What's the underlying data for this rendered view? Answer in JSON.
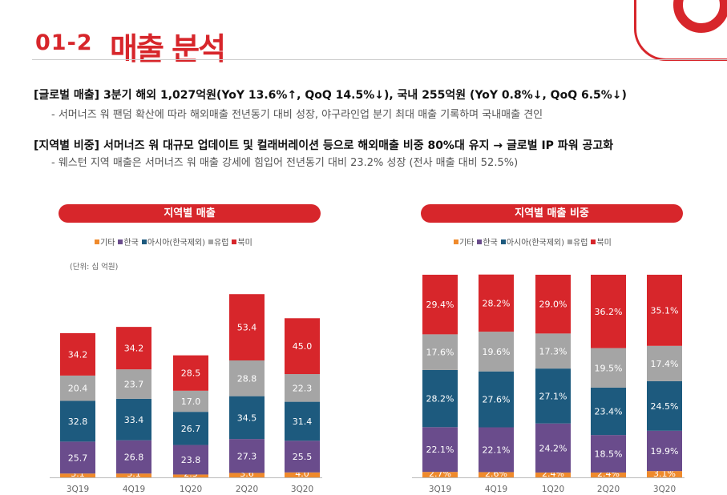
{
  "header": {
    "section_number": "01-2",
    "title": "매출 분석"
  },
  "bullets": [
    {
      "main": "[글로벌 매출] 3분기 해외 1,027억원(YoY 13.6%↑, QoQ 14.5%↓), 국내 255억원 (YoY 0.8%↓, QoQ 6.5%↓)",
      "sub": "-  서머너즈 워 팬덤 확산에 따라 해외매출 전년동기 대비 성장, 야구라인업 분기 최대 매출 기록하며 국내매출 견인"
    },
    {
      "main": "[지역별 비중] 서머너즈 워 대규모 업데이트 및 컬래버레이션  등으로 해외매출 비중 80%대 유지 → 글로벌 IP 파워 공고화",
      "sub": "-  웨스턴 지역 매출은 서머너즈 워 매출 강세에 힘입어 전년동기 대비 23.2% 성장 (전사 매출 대비 52.5%)"
    }
  ],
  "colors": {
    "기타": "#ef8a2c",
    "한국": "#6a4c8c",
    "아시아(한국제외)": "#1d5a7e",
    "유럽": "#a5a5a5",
    "북미": "#d7262b",
    "accent": "#d7262b"
  },
  "chart_data": [
    {
      "type": "bar",
      "title": "지역별 매출",
      "unit_note": "(단위: 십 억원)",
      "stacked": true,
      "legend": [
        "기타",
        "한국",
        "아시아(한국제외)",
        "유럽",
        "북미"
      ],
      "legend_position": "top",
      "categories": [
        "3Q19",
        "4Q19",
        "1Q20",
        "2Q20",
        "3Q20"
      ],
      "series": [
        {
          "name": "기타",
          "values": [
            3.1,
            3.1,
            2.3,
            3.6,
            4.0
          ]
        },
        {
          "name": "한국",
          "values": [
            25.7,
            26.8,
            23.8,
            27.3,
            25.5
          ]
        },
        {
          "name": "아시아(한국제외)",
          "values": [
            32.8,
            33.4,
            26.7,
            34.5,
            31.4
          ]
        },
        {
          "name": "유럽",
          "values": [
            20.4,
            23.7,
            17.0,
            28.8,
            22.3
          ]
        },
        {
          "name": "북미",
          "values": [
            34.2,
            34.2,
            28.5,
            53.4,
            45.0
          ]
        }
      ],
      "labels": [
        [
          "3.1",
          "3.1",
          "2.3",
          "3.6",
          "4.0"
        ],
        [
          "25.7",
          "26.8",
          "23.8",
          "27.3",
          "25.5"
        ],
        [
          "32.8",
          "33.4",
          "26.7",
          "34.5",
          "31.4"
        ],
        [
          "20.4",
          "23.7",
          "17.0",
          "28.8",
          "22.3"
        ],
        [
          "34.2",
          "34.2",
          "28.5",
          "53.4",
          "45.0"
        ]
      ]
    },
    {
      "type": "bar",
      "title": "지역별 매출 비중",
      "stacked": true,
      "legend": [
        "기타",
        "한국",
        "아시아(한국제외)",
        "유럽",
        "북미"
      ],
      "legend_position": "top",
      "categories": [
        "3Q19",
        "4Q19",
        "1Q20",
        "2Q20",
        "3Q20"
      ],
      "series": [
        {
          "name": "기타",
          "values": [
            2.7,
            2.6,
            2.4,
            2.4,
            3.1
          ]
        },
        {
          "name": "한국",
          "values": [
            22.1,
            22.1,
            24.2,
            18.5,
            19.9
          ]
        },
        {
          "name": "아시아(한국제외)",
          "values": [
            28.2,
            27.6,
            27.1,
            23.4,
            24.5
          ]
        },
        {
          "name": "유럽",
          "values": [
            17.6,
            19.6,
            17.3,
            19.5,
            17.4
          ]
        },
        {
          "name": "북미",
          "values": [
            29.4,
            28.2,
            29.0,
            36.2,
            35.1
          ]
        }
      ],
      "labels": [
        [
          "2.7%",
          "2.6%",
          "2.4%",
          "2.4%",
          "3.1%"
        ],
        [
          "22.1%",
          "22.1%",
          "24.2%",
          "18.5%",
          "19.9%"
        ],
        [
          "28.2%",
          "27.6%",
          "27.1%",
          "23.4%",
          "24.5%"
        ],
        [
          "17.6%",
          "19.6%",
          "17.3%",
          "19.5%",
          "17.4%"
        ],
        [
          "29.4%",
          "28.2%",
          "29.0%",
          "36.2%",
          "35.1%"
        ]
      ]
    }
  ]
}
